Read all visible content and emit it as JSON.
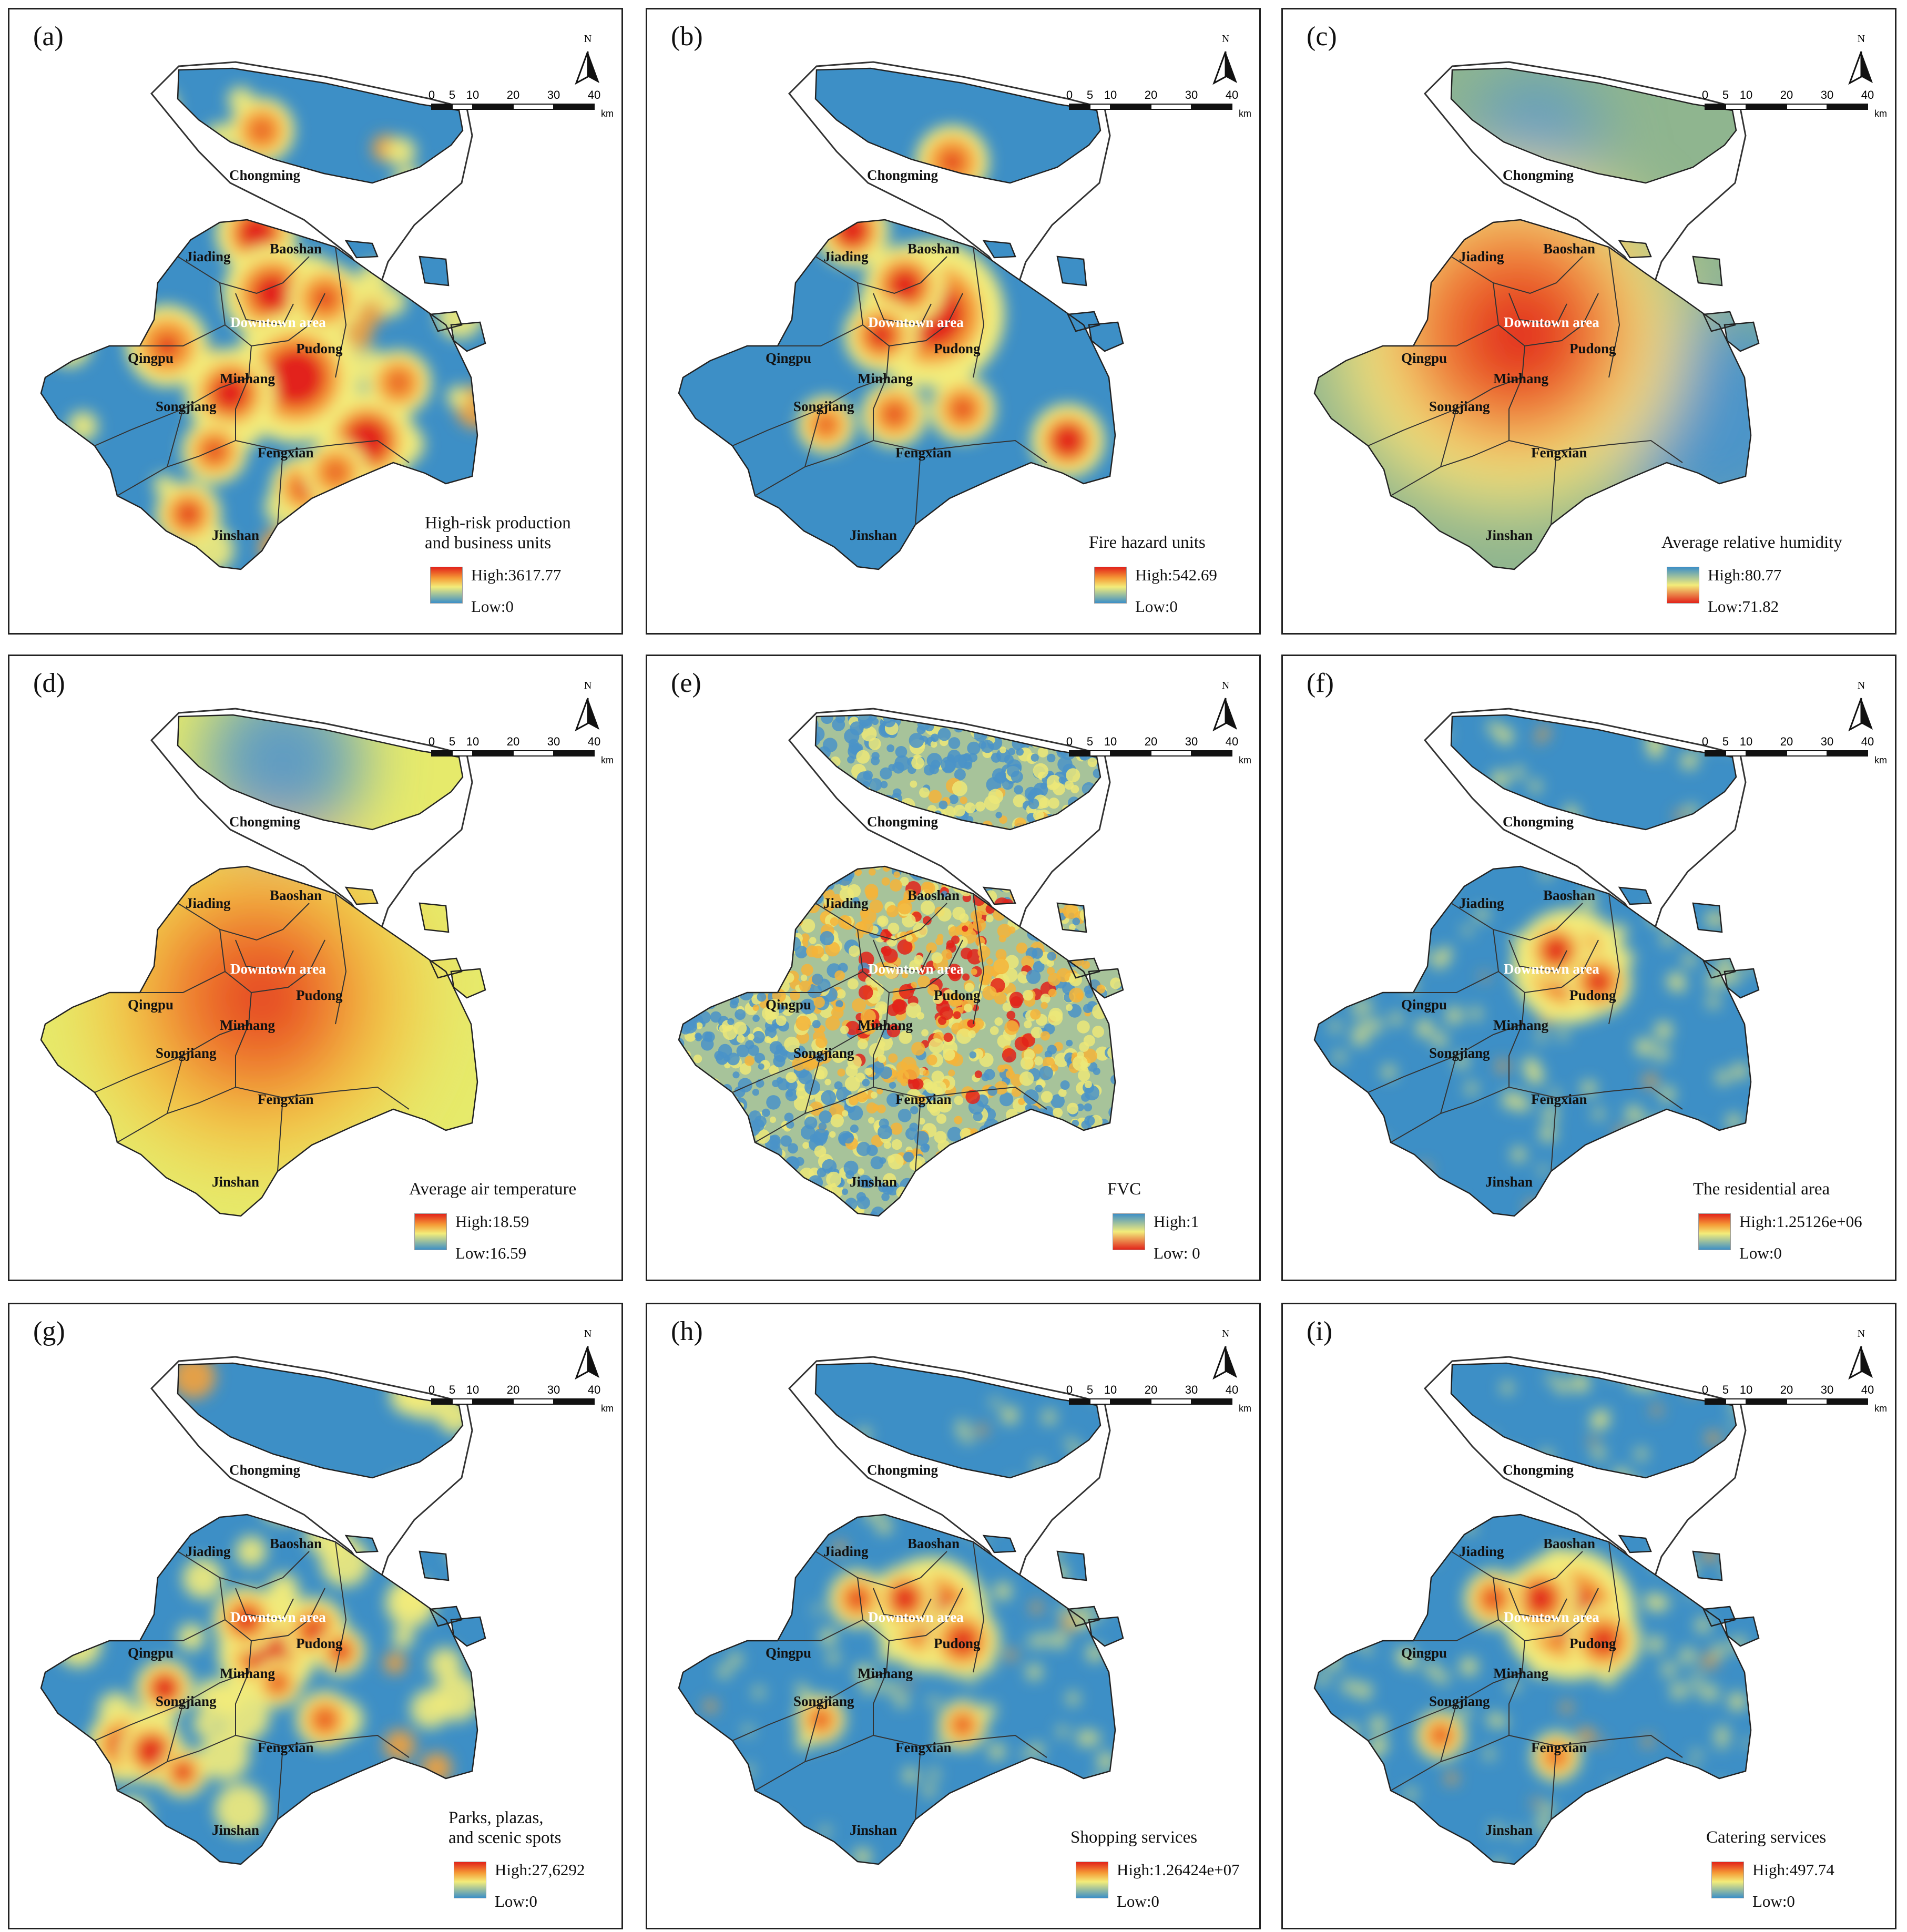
{
  "panels": [
    {
      "id": "a",
      "label": "(a)",
      "legend_title": "High-risk production\nand business units",
      "high": "High:3617.77",
      "low": "Low:0",
      "gradient": "rw"
    },
    {
      "id": "b",
      "label": "(b)",
      "legend_title": "Fire hazard units",
      "high": "High:542.69",
      "low": "Low:0",
      "gradient": "rw"
    },
    {
      "id": "c",
      "label": "(c)",
      "legend_title": "Average relative humidity",
      "high": "High:80.77",
      "low": "Low:71.82",
      "gradient": "bw"
    },
    {
      "id": "d",
      "label": "(d)",
      "legend_title": "Average air temperature",
      "high": "High:18.59",
      "low": "Low:16.59",
      "gradient": "rw"
    },
    {
      "id": "e",
      "label": "(e)",
      "legend_title": "FVC",
      "high": "High:1",
      "low": "Low: 0",
      "gradient": "bw"
    },
    {
      "id": "f",
      "label": "(f)",
      "legend_title": "The residential area",
      "high": "High:1.25126e+06",
      "low": "Low:0",
      "gradient": "rw"
    },
    {
      "id": "g",
      "label": "(g)",
      "legend_title": "Parks, plazas,\nand scenic spots",
      "high": "High:27,6292",
      "low": "Low:0",
      "gradient": "rw"
    },
    {
      "id": "h",
      "label": "(h)",
      "legend_title": "Shopping services",
      "high": "High:1.26424e+07",
      "low": "Low:0",
      "gradient": "rw"
    },
    {
      "id": "i",
      "label": "(i)",
      "legend_title": "Catering services",
      "high": "High:497.74",
      "low": "Low:0",
      "gradient": "rw"
    }
  ],
  "districts": [
    "Chongming",
    "Jiading",
    "Baoshan",
    "Downtown area",
    "Qingpu",
    "Pudong",
    "Minhang",
    "Songjiang",
    "Fengxian",
    "Jinshan"
  ],
  "scale_bar": {
    "ticks": [
      "0",
      "5",
      "10",
      "20",
      "30",
      "40"
    ],
    "unit": "km"
  },
  "north_label": "N",
  "colors": {
    "base": "#3d8fc6",
    "mid": "#f3ec7a",
    "hot": "#e2231a",
    "outline": "#222222"
  }
}
